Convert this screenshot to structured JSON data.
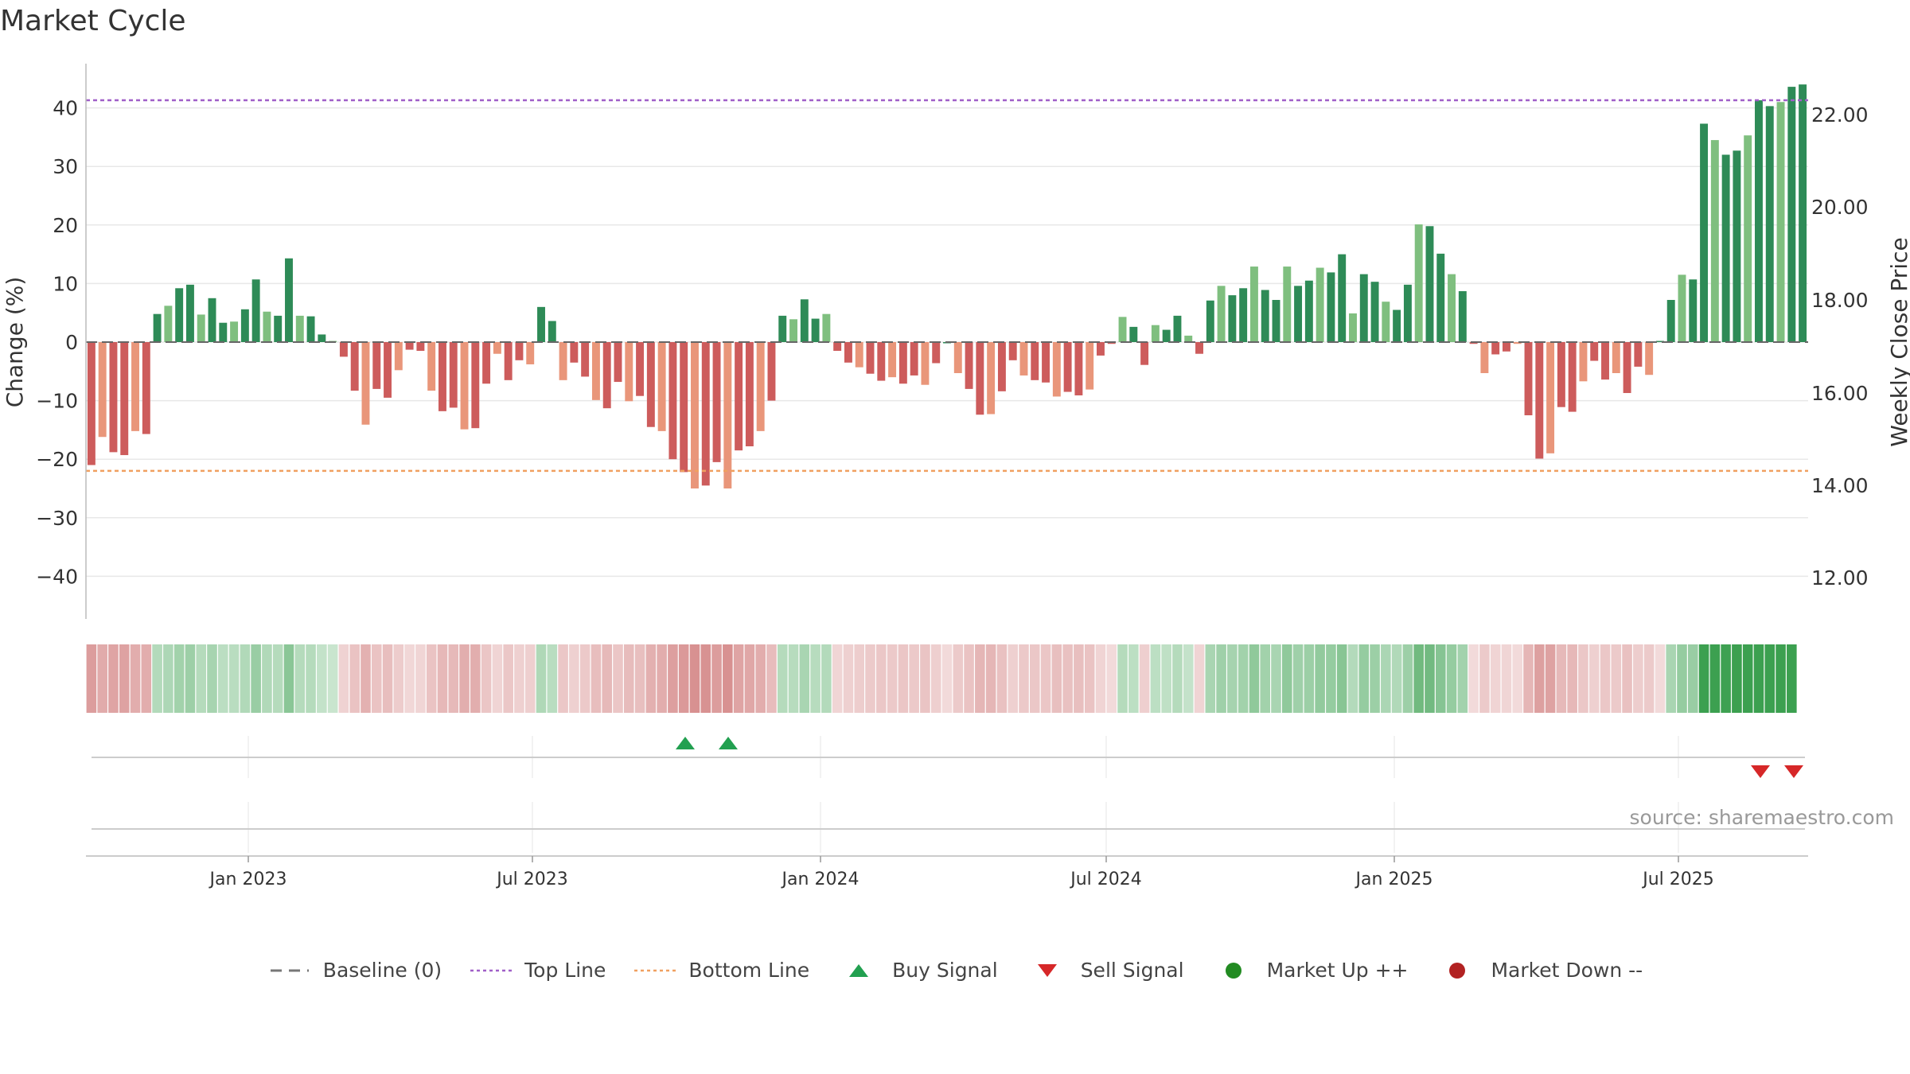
{
  "chart_data": {
    "type": "bar",
    "title": "Market Cycle",
    "source": "source: sharemaestro.com",
    "ylabel": "Change (%)",
    "y2label": "Weekly Close Price",
    "ylim": [
      -48,
      48
    ],
    "yticks": [
      -40,
      -30,
      -20,
      -10,
      0,
      10,
      20,
      30,
      40
    ],
    "y2ticks": [
      "12.00",
      "14.00",
      "16.00",
      "18.00",
      "20.00",
      "22.00"
    ],
    "xticks": [
      "Jan 2023",
      "Jul 2023",
      "Jan 2024",
      "Jul 2024",
      "Jan 2025",
      "Jul 2025"
    ],
    "top_line": 41.3,
    "bottom_line": -22.0,
    "values": [
      -21,
      -16.2,
      -18.8,
      -19.3,
      -15.2,
      -15.7,
      4.8,
      6.2,
      9.2,
      9.8,
      4.7,
      7.5,
      3.3,
      3.5,
      5.6,
      10.7,
      5.2,
      4.5,
      14.3,
      4.5,
      4.4,
      1.3,
      0.2,
      -2.5,
      -8.3,
      -14.1,
      -8,
      -9.5,
      -4.8,
      -1.3,
      -1.5,
      -8.3,
      -11.8,
      -11.2,
      -14.9,
      -14.7,
      -7.1,
      -2,
      -6.5,
      -3.1,
      -3.8,
      6,
      3.6,
      -6.5,
      -3.5,
      -5.9,
      -9.9,
      -11.3,
      -6.8,
      -10.1,
      -9.2,
      -14.5,
      -15.2,
      -20,
      -22.2,
      -25,
      -24.5,
      -20.5,
      -25,
      -18.5,
      -17.8,
      -15.2,
      -10,
      4.5,
      3.9,
      7.3,
      4,
      4.8,
      -1.5,
      -3.5,
      -4.3,
      -5.4,
      -6.6,
      -6,
      -7.1,
      -5.7,
      -7.3,
      -3.6,
      0,
      -5.3,
      -8,
      -12.4,
      -12.3,
      -8.4,
      -3.1,
      -5.7,
      -6.5,
      -6.9,
      -9.3,
      -8.5,
      -9.1,
      -8.1,
      -2.3,
      -0.3,
      4.3,
      2.6,
      -3.9,
      2.9,
      2.1,
      4.5,
      1.1,
      -2,
      7.1,
      9.6,
      8,
      9.2,
      12.9,
      8.9,
      7.2,
      12.9,
      9.6,
      10.5,
      12.7,
      11.9,
      15,
      4.9,
      11.6,
      10.3,
      6.9,
      5.5,
      9.8,
      20.1,
      19.8,
      15.1,
      11.6,
      8.7,
      -0.3,
      -5.3,
      -2.1,
      -1.6,
      -0.3,
      -12.5,
      -19.9,
      -19,
      -11.1,
      -11.9,
      -6.7,
      -3.2,
      -6.4,
      -5.3,
      -8.7,
      -4.2,
      -5.6,
      0.2,
      7.2,
      11.5,
      10.7,
      37.3,
      34.5,
      32,
      32.7,
      35.3,
      41.3,
      40.3,
      41,
      43.6,
      44
    ],
    "regime": [
      "d",
      "d",
      "d",
      "d",
      "d",
      "d",
      "u",
      "u",
      "u",
      "u",
      "u",
      "u",
      "u",
      "u",
      "u",
      "u",
      "u",
      "u",
      "u",
      "u",
      "u",
      "u",
      "u",
      "d",
      "d",
      "d",
      "d",
      "d",
      "d",
      "d",
      "d",
      "d",
      "d",
      "d",
      "d",
      "d",
      "d",
      "d",
      "d",
      "d",
      "d",
      "u",
      "u",
      "d",
      "d",
      "d",
      "d",
      "d",
      "d",
      "d",
      "d",
      "d",
      "d",
      "d",
      "d",
      "d",
      "d",
      "d",
      "d",
      "d",
      "d",
      "d",
      "d",
      "u",
      "u",
      "u",
      "u",
      "u",
      "d",
      "d",
      "d",
      "d",
      "d",
      "d",
      "d",
      "d",
      "d",
      "d",
      "d",
      "d",
      "d",
      "d",
      "d",
      "d",
      "d",
      "d",
      "d",
      "d",
      "d",
      "d",
      "d",
      "d",
      "d",
      "d",
      "u",
      "u",
      "d",
      "u",
      "u",
      "u",
      "u",
      "d",
      "u",
      "u",
      "u",
      "u",
      "u",
      "u",
      "u",
      "u",
      "u",
      "u",
      "u",
      "u",
      "u",
      "u",
      "u",
      "u",
      "u",
      "u",
      "u",
      "u",
      "u",
      "u",
      "u",
      "u",
      "d",
      "d",
      "d",
      "d",
      "d",
      "d",
      "d",
      "d",
      "d",
      "d",
      "d",
      "d",
      "d",
      "d",
      "d",
      "d",
      "d",
      "d",
      "u",
      "u",
      "u",
      "u",
      "u",
      "u",
      "u",
      "u",
      "u",
      "u",
      "u",
      "u"
    ],
    "buy_signals": [
      "Oct 2023",
      "Nov 2023"
    ],
    "sell_signals": [
      "Sep 2025",
      "Oct 2025"
    ],
    "legend": [
      {
        "label": "Baseline (0)",
        "kind": "dash",
        "color": "#777777"
      },
      {
        "label": "Top Line",
        "kind": "dotted",
        "color": "#a05fc8"
      },
      {
        "label": "Bottom Line",
        "kind": "dotted",
        "color": "#f0a060"
      },
      {
        "label": "Buy Signal",
        "kind": "tri-up",
        "color": "#22a050"
      },
      {
        "label": "Sell Signal",
        "kind": "tri-down",
        "color": "#d62728"
      },
      {
        "label": "Market Up ++",
        "kind": "dot",
        "color": "#228b22"
      },
      {
        "label": "Market Down --",
        "kind": "dot",
        "color": "#b22222"
      }
    ],
    "colors": {
      "up_strong": "#2e8b57",
      "up_light": "#7fbf7f",
      "down_strong": "#cd5c5c",
      "down_light": "#e9967a",
      "top_line": "#a05fc8",
      "bottom_line": "#f0a060"
    }
  }
}
